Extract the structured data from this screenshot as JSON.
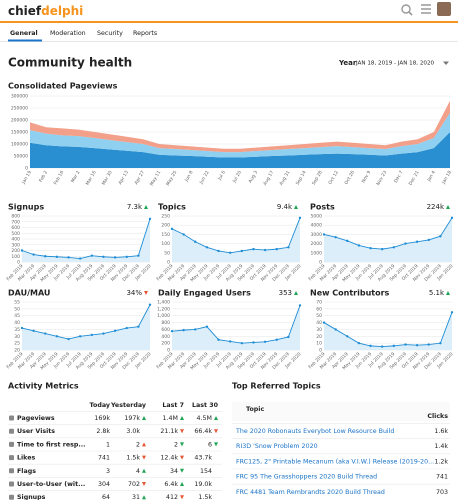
{
  "header": {
    "logo": [
      "chief",
      "delphi"
    ]
  },
  "tabs": [
    "General",
    "Moderation",
    "Security",
    "Reports"
  ],
  "page_title": "Community health",
  "period": {
    "label": "Year",
    "range": "JAN 18, 2019 - JAN 18, 2020"
  },
  "chart_data": [
    {
      "type": "area",
      "stacked": true,
      "title": "Consolidated Pageviews",
      "categories": [
        "Jan 19",
        "Feb 2",
        "Feb 16",
        "Mar 2",
        "Mar 16",
        "Mar 30",
        "Apr 13",
        "Apr 27",
        "May 11",
        "May 25",
        "Jun 8",
        "Jun 22",
        "Jul 6",
        "Jul 20",
        "Aug 3",
        "Aug 17",
        "Aug 31",
        "Sep 14",
        "Sep 28",
        "Oct 12",
        "Oct 26",
        "Nov 9",
        "Nov 23",
        "Dec 7",
        "Dec 21",
        "Jan 4",
        "Jan 18"
      ],
      "series": [
        {
          "color": "#2a8fd0",
          "values": [
            105000,
            95000,
            90000,
            88000,
            83000,
            77000,
            72000,
            66000,
            55000,
            52000,
            50000,
            47000,
            44000,
            44000,
            47000,
            50000,
            52000,
            55000,
            58000,
            60000,
            58000,
            55000,
            52000,
            60000,
            66000,
            83000,
            150000
          ]
        },
        {
          "color": "#8fd0f0",
          "values": [
            53000,
            48000,
            46000,
            45000,
            42000,
            39000,
            36000,
            34000,
            28000,
            27000,
            25000,
            24000,
            22000,
            22000,
            24000,
            25000,
            27000,
            28000,
            29000,
            31000,
            29000,
            28000,
            27000,
            31000,
            34000,
            42000,
            80000
          ]
        },
        {
          "color": "#f2a08a",
          "values": [
            32000,
            27000,
            29000,
            27000,
            25000,
            24000,
            22000,
            20000,
            17000,
            16000,
            15000,
            14000,
            14000,
            14000,
            14000,
            15000,
            16000,
            17000,
            18000,
            19000,
            18000,
            17000,
            16000,
            19000,
            20000,
            25000,
            50000
          ]
        }
      ],
      "ylim": [
        0,
        300000
      ],
      "yticks": [
        0,
        50000,
        100000,
        150000,
        200000,
        250000,
        300000
      ],
      "grid": true
    },
    {
      "type": "line",
      "title": "Signups",
      "headline": "7.3k",
      "trend": "up",
      "trend_color": "#1ca551",
      "categories": [
        "Feb 2019",
        "Mar 2019",
        "Apr 2019",
        "May 2019",
        "Jun 2019",
        "Jul 2019",
        "Aug 2019",
        "Sep 2019",
        "Oct 2019",
        "Nov 2019",
        "Dec 2019",
        "Jan 2020"
      ],
      "values": [
        200,
        130,
        100,
        90,
        80,
        60,
        110,
        90,
        80,
        90,
        110,
        750
      ],
      "ylim": [
        0,
        800
      ],
      "yticks": [
        0,
        100,
        200,
        300,
        400,
        500,
        600,
        700,
        800
      ],
      "color": "#1f8dd6"
    },
    {
      "type": "line",
      "title": "Topics",
      "headline": "9.4k",
      "trend": "up",
      "trend_color": "#1ca551",
      "categories": [
        "Feb 2019",
        "Mar 2019",
        "Apr 2019",
        "May 2019",
        "Jun 2019",
        "Jul 2019",
        "Aug 2019",
        "Sep 2019",
        "Oct 2019",
        "Nov 2019",
        "Dec 2019",
        "Jan 2020"
      ],
      "values": [
        180,
        150,
        110,
        80,
        60,
        50,
        60,
        70,
        65,
        70,
        80,
        240
      ],
      "ylim": [
        0,
        250
      ],
      "yticks": [
        0,
        50,
        100,
        150,
        200,
        250
      ],
      "color": "#1f8dd6"
    },
    {
      "type": "line",
      "title": "Posts",
      "headline": "224k",
      "trend": "up",
      "trend_color": "#1ca551",
      "categories": [
        "Feb 2019",
        "Mar 2019",
        "Apr 2019",
        "May 2019",
        "Jun 2019",
        "Jul 2019",
        "Aug 2019",
        "Sep 2019",
        "Oct 2019",
        "Nov 2019",
        "Dec 2019",
        "Jan 2020"
      ],
      "values": [
        3000,
        2700,
        2300,
        1800,
        1500,
        1400,
        1600,
        2000,
        2200,
        2400,
        2800,
        4800
      ],
      "ylim": [
        0,
        5000
      ],
      "yticks": [
        0,
        1000,
        2000,
        3000,
        4000,
        5000
      ],
      "color": "#1f8dd6"
    },
    {
      "type": "line",
      "title": "DAU/MAU",
      "headline": "34%",
      "trend": "down",
      "trend_color": "#e45735",
      "categories": [
        "Feb 2019",
        "Mar 2019",
        "Apr 2019",
        "May 2019",
        "Jun 2019",
        "Jul 2019",
        "Aug 2019",
        "Sep 2019",
        "Oct 2019",
        "Nov 2019",
        "Dec 2019",
        "Jan 2020"
      ],
      "values": [
        36,
        34,
        32,
        30,
        28,
        30,
        31,
        32,
        34,
        36,
        37,
        53
      ],
      "ylim": [
        20,
        55
      ],
      "yticks": [
        20,
        25,
        30,
        35,
        40,
        45,
        50,
        55
      ],
      "color": "#1f8dd6"
    },
    {
      "type": "line",
      "title": "Daily Engaged Users",
      "headline": "353",
      "trend": "up",
      "trend_color": "#1ca551",
      "categories": [
        "Feb 2019",
        "Mar 2019",
        "Apr 2019",
        "May 2019",
        "Jun 2019",
        "Jul 2019",
        "Aug 2019",
        "Sep 2019",
        "Oct 2019",
        "Nov 2019",
        "Dec 2019",
        "Jan 2020"
      ],
      "values": [
        550,
        580,
        600,
        680,
        300,
        250,
        200,
        220,
        240,
        300,
        380,
        1300
      ],
      "ylim": [
        0,
        1400
      ],
      "yticks": [
        0,
        200,
        400,
        600,
        800,
        {
          "value": 1000,
          "label": "1,000"
        },
        {
          "value": 1200,
          "label": "1,200"
        },
        {
          "value": 1400,
          "label": "1,400"
        }
      ],
      "color": "#1f8dd6"
    },
    {
      "type": "line",
      "title": "New Contributors",
      "headline": "5.1k",
      "trend": "up",
      "trend_color": "#1ca551",
      "categories": [
        "Feb 2019",
        "Mar 2019",
        "Apr 2019",
        "May 2019",
        "Jun 2019",
        "Jul 2019",
        "Aug 2019",
        "Sep 2019",
        "Oct 2019",
        "Nov 2019",
        "Dec 2019",
        "Jan 2020"
      ],
      "values": [
        40,
        30,
        20,
        10,
        6,
        5,
        6,
        8,
        7,
        8,
        10,
        55
      ],
      "ylim": [
        0,
        70
      ],
      "yticks": [
        0,
        10,
        20,
        30,
        40,
        50,
        60,
        70
      ],
      "color": "#1f8dd6"
    }
  ],
  "activity": {
    "title": "Activity Metrics",
    "columns": [
      "Today",
      "Yesterday",
      "Last 7",
      "Last 30"
    ],
    "rows": [
      {
        "label": "Pageviews",
        "cells": [
          "169k",
          {
            "text": "197k",
            "arrow": "up",
            "color": "#1ca551"
          },
          {
            "text": "1.4M",
            "arrow": "up",
            "color": "#1ca551"
          },
          {
            "text": "4.5M",
            "arrow": "up",
            "color": "#1ca551"
          }
        ]
      },
      {
        "label": "User Visits",
        "cells": [
          "2.8k",
          "3.0k",
          {
            "text": "21.1k",
            "arrow": "down",
            "color": "#e45735"
          },
          {
            "text": "66.4k",
            "arrow": "down",
            "color": "#e45735"
          }
        ]
      },
      {
        "label": "Time to first resp...",
        "cells": [
          "1",
          {
            "text": "2",
            "arrow": "up",
            "color": "#e45735"
          },
          {
            "text": "2",
            "arrow": "down",
            "color": "#1ca551"
          },
          {
            "text": "6",
            "arrow": "down",
            "color": "#1ca551"
          }
        ]
      },
      {
        "label": "Likes",
        "cells": [
          "741",
          {
            "text": "1.5k",
            "arrow": "down",
            "color": "#e45735"
          },
          {
            "text": "12.4k",
            "arrow": "down",
            "color": "#e45735"
          },
          "43.7k"
        ]
      },
      {
        "label": "Flags",
        "cells": [
          "3",
          {
            "text": "4",
            "arrow": "up",
            "color": "#1ca551"
          },
          {
            "text": "34",
            "arrow": "down",
            "color": "#1ca551"
          },
          "154"
        ]
      },
      {
        "label": "User-to-User (wit...",
        "cells": [
          "304",
          {
            "text": "702",
            "arrow": "down",
            "color": "#e45735"
          },
          {
            "text": "6.4k",
            "arrow": "up",
            "color": "#1ca551"
          },
          "19.0k"
        ]
      },
      {
        "label": "Signups",
        "cells": [
          "64",
          {
            "text": "31",
            "arrow": "up",
            "color": "#1ca551"
          },
          {
            "text": "412",
            "arrow": "down",
            "color": "#e45735"
          },
          "1.5k"
        ]
      }
    ]
  },
  "referred": {
    "title": "Top Referred Topics",
    "columns": [
      "Topic",
      "Clicks"
    ],
    "rows": [
      [
        "The 2020 Robonauts Everybot Low Resource Build",
        "1.6k"
      ],
      [
        "RI3D 'Snow Problem 2020",
        "1.4k"
      ],
      [
        "FRC125, 2\" Printable Mecanum (aka V.I.W.) Release (2019-20...",
        "1.2k"
      ],
      [
        "FRC 95 The Grasshoppers 2020 Build Thread",
        "741"
      ],
      [
        "FRC 4481 Team Rembrandts 2020 Build Thread",
        "703"
      ]
    ]
  }
}
